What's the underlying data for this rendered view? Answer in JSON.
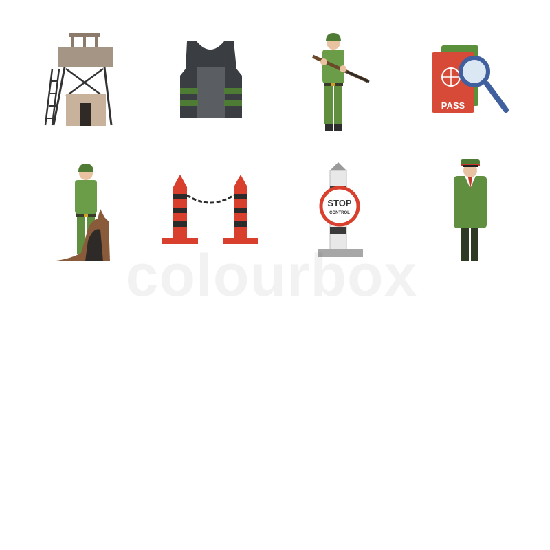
{
  "colors": {
    "uniform": "#5f8f3f",
    "uniform_dark": "#4a7531",
    "boots": "#2e2e2e",
    "skin": "#e9c2a1",
    "steel": "#44474d",
    "passport": "#d74a37",
    "barrier_red": "#d83f2c",
    "dog_brown": "#8a5b3a",
    "dog_dark": "#2e2a27"
  },
  "icons": [
    {
      "name": "watchtower-icon"
    },
    {
      "name": "body-armor-vest-icon"
    },
    {
      "name": "soldier-with-rifle-icon"
    },
    {
      "name": "passport-magnifier-icon",
      "label": "PASS"
    },
    {
      "name": "soldier-with-dog-icon"
    },
    {
      "name": "chain-barrier-posts-icon"
    },
    {
      "name": "stop-control-sign-icon",
      "label_1": "STOP",
      "label_2": "CONTROL"
    },
    {
      "name": "officer-icon"
    },
    {
      "name": "binoculars-icon"
    },
    {
      "name": "saluting-soldier-icon"
    },
    {
      "name": "guard-dog-icon"
    },
    {
      "name": "field-radio-icon"
    },
    {
      "name": "boom-barrier-icon"
    },
    {
      "name": "walkie-talkies-icon"
    },
    {
      "name": "soldier-squad-icon"
    },
    {
      "name": "soldier-with-binoculars-icon"
    }
  ],
  "watermark": "colourbox"
}
